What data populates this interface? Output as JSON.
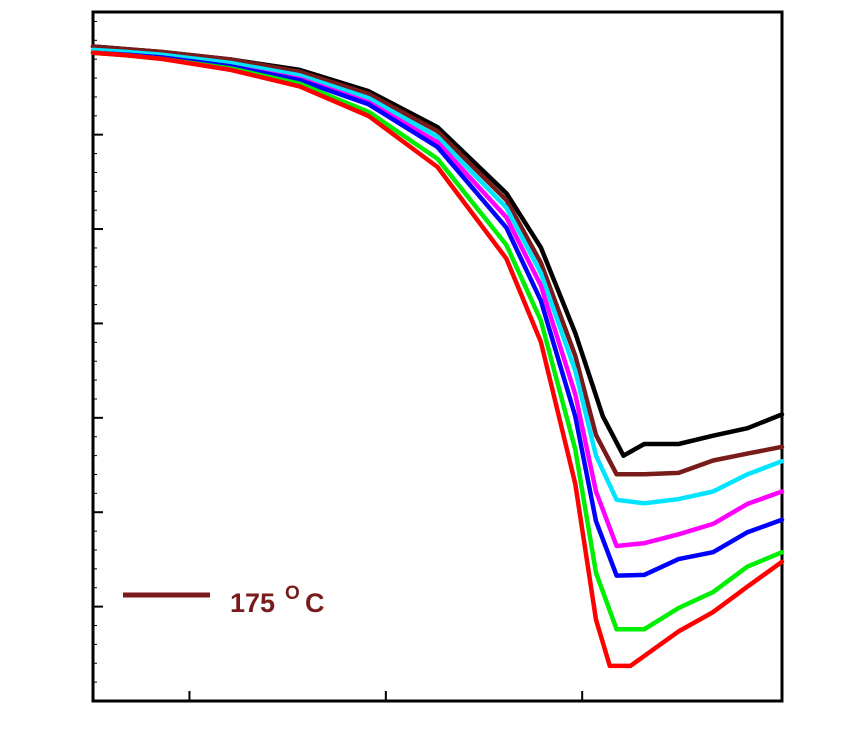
{
  "chart_data": {
    "type": "line",
    "title": "",
    "xlabel": "",
    "ylabel": "",
    "xlim": [
      0,
      100
    ],
    "ylim": [
      0,
      100
    ],
    "x_major_ticks": [
      14,
      42.5,
      71
    ],
    "y_major_ticks": [
      13.7,
      27.4,
      41.1,
      54.8,
      68.5,
      82.2
    ],
    "grid": false,
    "legend": {
      "placement": "bottom-left",
      "entries": [
        {
          "label": "175",
          "superscript": "O",
          "unit": "C",
          "color": "#7a1b1b"
        }
      ]
    },
    "series": [
      {
        "color": "#000000",
        "points": [
          [
            0,
            95
          ],
          [
            5,
            94.6
          ],
          [
            10,
            94.2
          ],
          [
            20,
            93.1
          ],
          [
            30,
            91.6
          ],
          [
            40,
            88.5
          ],
          [
            50,
            83.3
          ],
          [
            60,
            73.7
          ],
          [
            65,
            65.8
          ],
          [
            70,
            53.4
          ],
          [
            74,
            41.3
          ],
          [
            77,
            35.6
          ],
          [
            80,
            37.3
          ],
          [
            85,
            37.3
          ],
          [
            90,
            38.5
          ],
          [
            95,
            39.6
          ],
          [
            100,
            41.6
          ]
        ]
      },
      {
        "color": "#7a1b1b",
        "points": [
          [
            0,
            95
          ],
          [
            5,
            94.6
          ],
          [
            10,
            94.2
          ],
          [
            20,
            93.1
          ],
          [
            30,
            91.3
          ],
          [
            40,
            88.1
          ],
          [
            50,
            82.7
          ],
          [
            60,
            72.7
          ],
          [
            65,
            63.6
          ],
          [
            70,
            50.1
          ],
          [
            73,
            38.6
          ],
          [
            76,
            32.9
          ],
          [
            80,
            32.9
          ],
          [
            85,
            33.1
          ],
          [
            90,
            34.9
          ],
          [
            95,
            35.9
          ],
          [
            100,
            36.9
          ]
        ]
      },
      {
        "color": "#00e5ff",
        "points": [
          [
            0,
            94.5
          ],
          [
            5,
            94.2
          ],
          [
            10,
            93.8
          ],
          [
            20,
            92.6
          ],
          [
            30,
            90.8
          ],
          [
            40,
            87.5
          ],
          [
            50,
            81.9
          ],
          [
            60,
            71.6
          ],
          [
            65,
            62.1
          ],
          [
            70,
            47.9
          ],
          [
            73,
            35.6
          ],
          [
            76,
            29.2
          ],
          [
            80,
            28.7
          ],
          [
            85,
            29.3
          ],
          [
            90,
            30.4
          ],
          [
            95,
            32.9
          ],
          [
            100,
            34.8
          ]
        ]
      },
      {
        "color": "#ff00ff",
        "points": [
          [
            0,
            94.1
          ],
          [
            5,
            93.8
          ],
          [
            10,
            93.4
          ],
          [
            20,
            92.1
          ],
          [
            30,
            90.3
          ],
          [
            40,
            86.9
          ],
          [
            50,
            81.1
          ],
          [
            60,
            70.2
          ],
          [
            65,
            60.3
          ],
          [
            70,
            44.5
          ],
          [
            73,
            30.4
          ],
          [
            76,
            22.5
          ],
          [
            80,
            22.9
          ],
          [
            85,
            24.2
          ],
          [
            90,
            25.7
          ],
          [
            95,
            28.6
          ],
          [
            100,
            30.4
          ]
        ]
      },
      {
        "color": "#0000ff",
        "points": [
          [
            0,
            94.1
          ],
          [
            5,
            93.8
          ],
          [
            10,
            93.4
          ],
          [
            20,
            92.1
          ],
          [
            30,
            90.1
          ],
          [
            40,
            86.6
          ],
          [
            50,
            80.4
          ],
          [
            60,
            68.7
          ],
          [
            65,
            58.1
          ],
          [
            70,
            41.3
          ],
          [
            73,
            26.1
          ],
          [
            76,
            18.2
          ],
          [
            80,
            18.3
          ],
          [
            85,
            20.6
          ],
          [
            90,
            21.6
          ],
          [
            95,
            24.5
          ],
          [
            100,
            26.3
          ]
        ]
      },
      {
        "color": "#00ee00",
        "points": [
          [
            0,
            94.1
          ],
          [
            5,
            93.7
          ],
          [
            10,
            93.2
          ],
          [
            20,
            91.8
          ],
          [
            30,
            89.6
          ],
          [
            40,
            85.5
          ],
          [
            50,
            78.7
          ],
          [
            60,
            66.2
          ],
          [
            65,
            55.2
          ],
          [
            70,
            36.5
          ],
          [
            73,
            18.6
          ],
          [
            76,
            10.4
          ],
          [
            80,
            10.4
          ],
          [
            85,
            13.5
          ],
          [
            90,
            15.8
          ],
          [
            95,
            19.5
          ],
          [
            100,
            21.6
          ]
        ]
      },
      {
        "color": "#ff0000",
        "points": [
          [
            0,
            94.1
          ],
          [
            5,
            93.7
          ],
          [
            10,
            93.2
          ],
          [
            20,
            91.6
          ],
          [
            30,
            89.2
          ],
          [
            40,
            84.9
          ],
          [
            50,
            77.5
          ],
          [
            60,
            64.2
          ],
          [
            65,
            52.1
          ],
          [
            70,
            31.5
          ],
          [
            73,
            11.8
          ],
          [
            75,
            5.1
          ],
          [
            78,
            5.1
          ],
          [
            85,
            10.1
          ],
          [
            90,
            12.9
          ],
          [
            95,
            16.6
          ],
          [
            100,
            20.2
          ]
        ]
      }
    ]
  }
}
